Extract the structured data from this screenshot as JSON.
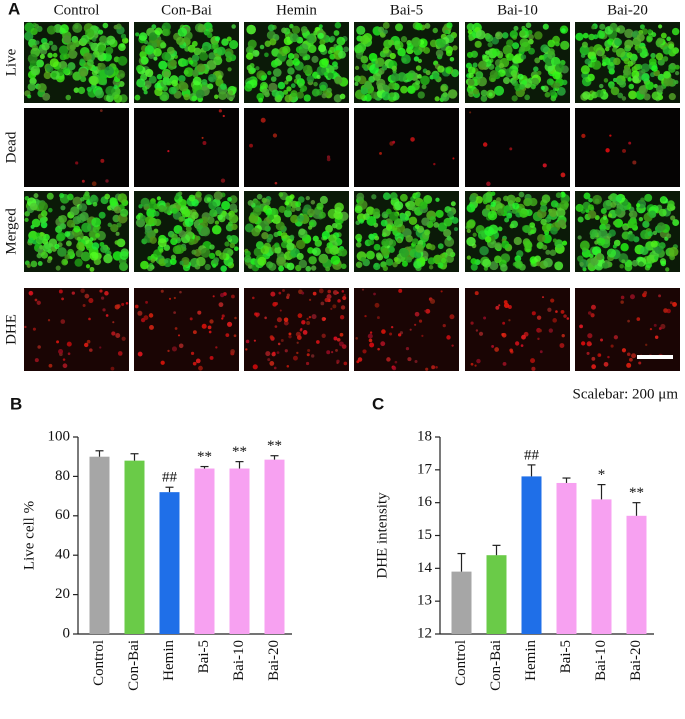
{
  "panel_a": {
    "label": "A",
    "columns": [
      "Control",
      "Con-Bai",
      "Hemin",
      "Bai-5",
      "Bai-10",
      "Bai-20"
    ],
    "rows": [
      "Live",
      "Dead",
      "Merged",
      "DHE"
    ],
    "scalebar": "Scalebar: 200 μm"
  },
  "chart_data": [
    {
      "type": "bar",
      "label": "B",
      "ylabel": "Live cell %",
      "categories": [
        "Control",
        "Con-Bai",
        "Hemin",
        "Bai-5",
        "Bai-10",
        "Bai-20"
      ],
      "values": [
        90,
        88,
        72,
        84,
        84,
        88.5
      ],
      "errors": [
        3,
        3.5,
        2.5,
        1,
        3.5,
        2
      ],
      "colors": [
        "#a6a6a6",
        "#6acb48",
        "#1f6fe8",
        "#f7a1f1",
        "#f7a1f1",
        "#f7a1f1"
      ],
      "significance": [
        null,
        null,
        "##",
        "**",
        "**",
        "**"
      ],
      "ylim": [
        0,
        100
      ],
      "yticks": [
        0,
        20,
        40,
        60,
        80,
        100
      ]
    },
    {
      "type": "bar",
      "label": "C",
      "ylabel": "DHE intensity",
      "categories": [
        "Control",
        "Con-Bai",
        "Hemin",
        "Bai-5",
        "Bai-10",
        "Bai-20"
      ],
      "values": [
        13.9,
        14.4,
        16.8,
        16.6,
        16.1,
        15.6
      ],
      "errors": [
        0.55,
        0.3,
        0.35,
        0.15,
        0.45,
        0.4
      ],
      "colors": [
        "#a6a6a6",
        "#6acb48",
        "#1f6fe8",
        "#f7a1f1",
        "#f7a1f1",
        "#f7a1f1"
      ],
      "significance": [
        null,
        null,
        "##",
        null,
        "*",
        "**"
      ],
      "ylim": [
        12,
        18
      ],
      "yticks": [
        12,
        13,
        14,
        15,
        16,
        17,
        18
      ]
    }
  ]
}
